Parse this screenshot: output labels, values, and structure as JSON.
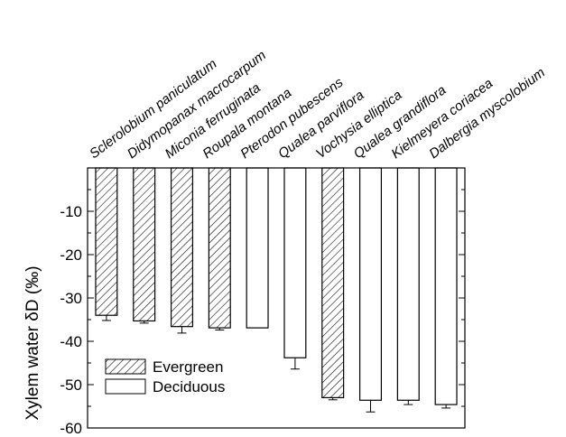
{
  "chart_data": {
    "type": "bar",
    "title": "",
    "xlabel": "",
    "ylabel": "Xylem water δD (‰)",
    "ylim": [
      -60,
      0
    ],
    "yticks": [
      -10,
      -20,
      -30,
      -40,
      -50,
      -60
    ],
    "bar_baseline": 0,
    "grid": false,
    "legend_position": "bottom-left",
    "categories": [
      "Sclerolobium paniculatum",
      "Didymopanax macrocarpum",
      "Miconia ferruginata",
      "Roupala montana",
      "Pterodon pubescens",
      "Qualea parviflora",
      "Vochysia elliptica",
      "Qualea grandiflora",
      "Kielmeyera coriacea",
      "Dalbergia myscolobium"
    ],
    "values": [
      -34.0,
      -35.3,
      -36.6,
      -36.9,
      -36.9,
      -43.8,
      -53.0,
      -53.6,
      -53.6,
      -54.6
    ],
    "errors": [
      1.2,
      0.5,
      1.5,
      0.5,
      0,
      2.6,
      0.5,
      2.7,
      1.0,
      0.8
    ],
    "groups": [
      "Evergreen",
      "Evergreen",
      "Evergreen",
      "Evergreen",
      "Deciduous",
      "Deciduous",
      "Evergreen",
      "Deciduous",
      "Deciduous",
      "Deciduous"
    ],
    "legend": [
      {
        "name": "Evergreen",
        "fill": "hatched"
      },
      {
        "name": "Deciduous",
        "fill": "open"
      }
    ]
  }
}
